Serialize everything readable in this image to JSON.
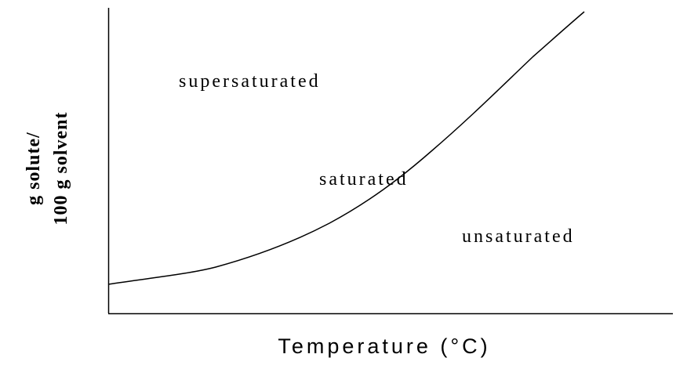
{
  "regions": [
    "supersaturated",
    "saturated",
    "unsaturated"
  ],
  "x_axis_label": "Temperature (°C)",
  "y_axis_label": [
    "g solute/",
    "100 g solvent"
  ]
}
